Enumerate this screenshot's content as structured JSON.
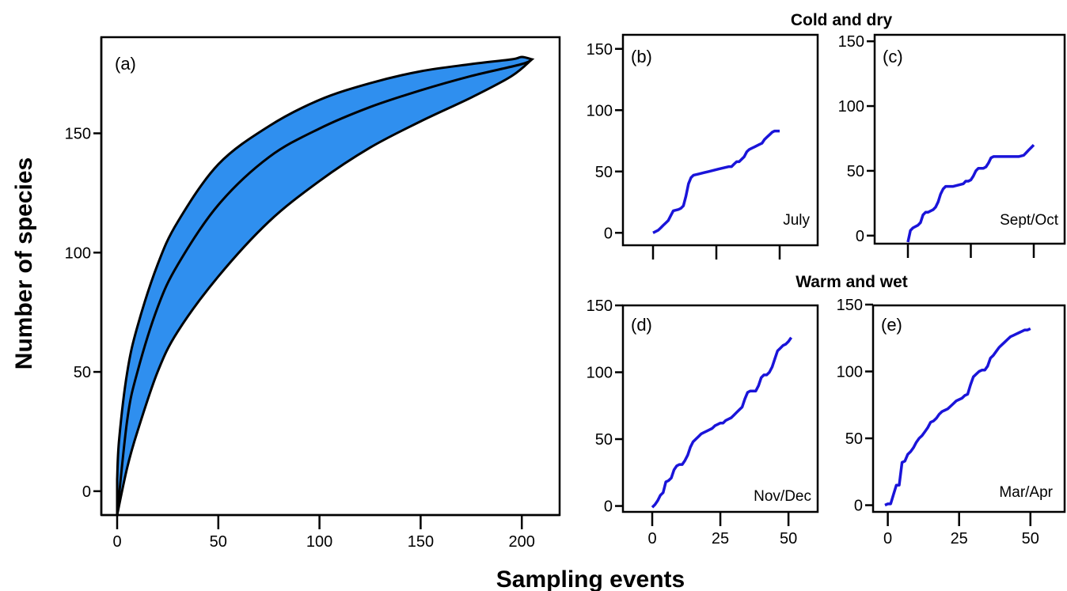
{
  "figure": {
    "ylabel": "Number of species",
    "xlabel": "Sampling events",
    "group_titles": [
      "Cold and dry",
      "Warm and wet"
    ]
  },
  "colors": {
    "band": "#2f8fef",
    "line": "#000000",
    "curve": "#1a14d9"
  },
  "chart_data": [
    {
      "id": "a",
      "type": "area",
      "panel_label": "(a)",
      "xlim": [
        0,
        205
      ],
      "ylim": [
        -10,
        182
      ],
      "xticks": [
        0,
        50,
        100,
        150,
        200
      ],
      "yticks": [
        0,
        50,
        100,
        150
      ],
      "series": [
        {
          "role": "upper",
          "x": [
            0,
            1,
            5,
            10,
            20,
            30,
            50,
            75,
            100,
            125,
            150,
            175,
            195,
            200,
            205
          ],
          "y": [
            5,
            22,
            50,
            69,
            95,
            113,
            137,
            153,
            164,
            171,
            176,
            179,
            181,
            182,
            181
          ]
        },
        {
          "role": "mean",
          "x": [
            0,
            5,
            10,
            20,
            30,
            50,
            75,
            100,
            125,
            150,
            175,
            200,
            205
          ],
          "y": [
            -10,
            30,
            50,
            77,
            95,
            120,
            140,
            152,
            161,
            168,
            174,
            179,
            181
          ]
        },
        {
          "role": "lower",
          "x": [
            0,
            5,
            10,
            20,
            30,
            50,
            75,
            100,
            125,
            150,
            175,
            195,
            205
          ],
          "y": [
            -10,
            10,
            25,
            50,
            67,
            90,
            113,
            130,
            144,
            155,
            165,
            174,
            181
          ]
        }
      ]
    },
    {
      "id": "b",
      "type": "line",
      "panel_label": "(b)",
      "season": "July",
      "xlim": [
        0,
        50
      ],
      "ylim": [
        -5,
        155
      ],
      "xticks": [
        0,
        25,
        50
      ],
      "yticks": [
        0,
        50,
        100,
        150
      ],
      "show_xtick_labels": false,
      "x": [
        0,
        2,
        3,
        4,
        5,
        6,
        7,
        8,
        10,
        11,
        12,
        13,
        14,
        15,
        16,
        18,
        20,
        22,
        24,
        26,
        28,
        30,
        31,
        32,
        33,
        34,
        35,
        36,
        37,
        38,
        39,
        40,
        41,
        42,
        43,
        44,
        45,
        46,
        47,
        48,
        50
      ],
      "y": [
        0,
        2,
        4,
        6,
        8,
        10,
        14,
        18,
        19,
        20,
        22,
        30,
        40,
        45,
        47,
        48,
        49,
        50,
        51,
        52,
        53,
        54,
        54,
        56,
        58,
        58,
        60,
        62,
        66,
        68,
        69,
        70,
        71,
        72,
        73,
        76,
        78,
        80,
        82,
        83,
        83
      ]
    },
    {
      "id": "c",
      "type": "line",
      "panel_label": "(c)",
      "season": "Sept/Oct",
      "xlim": [
        0,
        50
      ],
      "ylim": [
        -5,
        155
      ],
      "xticks": [
        0,
        25,
        50
      ],
      "yticks": [
        0,
        50,
        100,
        150
      ],
      "show_xtick_labels": false,
      "x": [
        0,
        1,
        2,
        4,
        5,
        6,
        7,
        8,
        10,
        11,
        12,
        13,
        14,
        15,
        16,
        18,
        20,
        22,
        23,
        24,
        25,
        26,
        27,
        28,
        30,
        31,
        32,
        33,
        34,
        35,
        36,
        37,
        38,
        40,
        42,
        44,
        46,
        47,
        48,
        49,
        50
      ],
      "y": [
        -5,
        4,
        6,
        8,
        10,
        16,
        18,
        18,
        20,
        22,
        26,
        32,
        36,
        38,
        38,
        38,
        39,
        40,
        42,
        42,
        43,
        46,
        50,
        52,
        52,
        53,
        56,
        60,
        61,
        61,
        61,
        61,
        61,
        61,
        61,
        61,
        62,
        64,
        66,
        68,
        70
      ]
    },
    {
      "id": "d",
      "type": "line",
      "panel_label": "(d)",
      "season": "Nov/Dec",
      "xlim": [
        0,
        52
      ],
      "ylim": [
        -5,
        150
      ],
      "xticks": [
        0,
        25,
        50
      ],
      "yticks": [
        0,
        50,
        100,
        150
      ],
      "show_xtick_labels": true,
      "x": [
        0,
        1,
        2,
        3,
        4,
        5,
        6,
        7,
        8,
        9,
        10,
        11,
        12,
        13,
        14,
        15,
        16,
        17,
        18,
        19,
        20,
        21,
        22,
        23,
        24,
        25,
        26,
        27,
        28,
        29,
        30,
        31,
        32,
        33,
        34,
        35,
        36,
        37,
        38,
        39,
        40,
        41,
        42,
        43,
        44,
        45,
        46,
        47,
        48,
        49,
        50,
        51
      ],
      "y": [
        -1,
        1,
        4,
        8,
        10,
        18,
        19,
        21,
        27,
        30,
        31,
        31,
        34,
        38,
        44,
        48,
        50,
        52,
        54,
        55,
        56,
        57,
        58,
        60,
        61,
        62,
        62,
        64,
        65,
        66,
        68,
        70,
        72,
        74,
        80,
        85,
        86,
        86,
        86,
        90,
        96,
        98,
        98,
        100,
        104,
        110,
        116,
        118,
        120,
        121,
        123,
        126
      ]
    },
    {
      "id": "e",
      "type": "line",
      "panel_label": "(e)",
      "season": "Mar/Apr",
      "xlim": [
        -1,
        52
      ],
      "ylim": [
        -5,
        150
      ],
      "xticks": [
        0,
        25,
        50
      ],
      "yticks": [
        0,
        50,
        100,
        150
      ],
      "show_xtick_labels": true,
      "x": [
        -1,
        0,
        1,
        2,
        3,
        4,
        5,
        6,
        7,
        8,
        9,
        10,
        11,
        12,
        13,
        14,
        15,
        16,
        17,
        18,
        19,
        20,
        21,
        22,
        23,
        24,
        25,
        26,
        27,
        28,
        29,
        30,
        31,
        32,
        33,
        34,
        35,
        36,
        37,
        38,
        39,
        40,
        41,
        42,
        43,
        44,
        45,
        46,
        47,
        48,
        49,
        50
      ],
      "y": [
        0,
        1,
        1,
        8,
        15,
        15,
        32,
        33,
        38,
        40,
        43,
        47,
        50,
        52,
        55,
        58,
        62,
        63,
        65,
        68,
        70,
        71,
        72,
        74,
        76,
        78,
        79,
        80,
        82,
        83,
        90,
        96,
        98,
        100,
        101,
        101,
        104,
        110,
        112,
        115,
        118,
        120,
        122,
        124,
        126,
        127,
        128,
        129,
        130,
        131,
        131,
        132
      ]
    }
  ]
}
